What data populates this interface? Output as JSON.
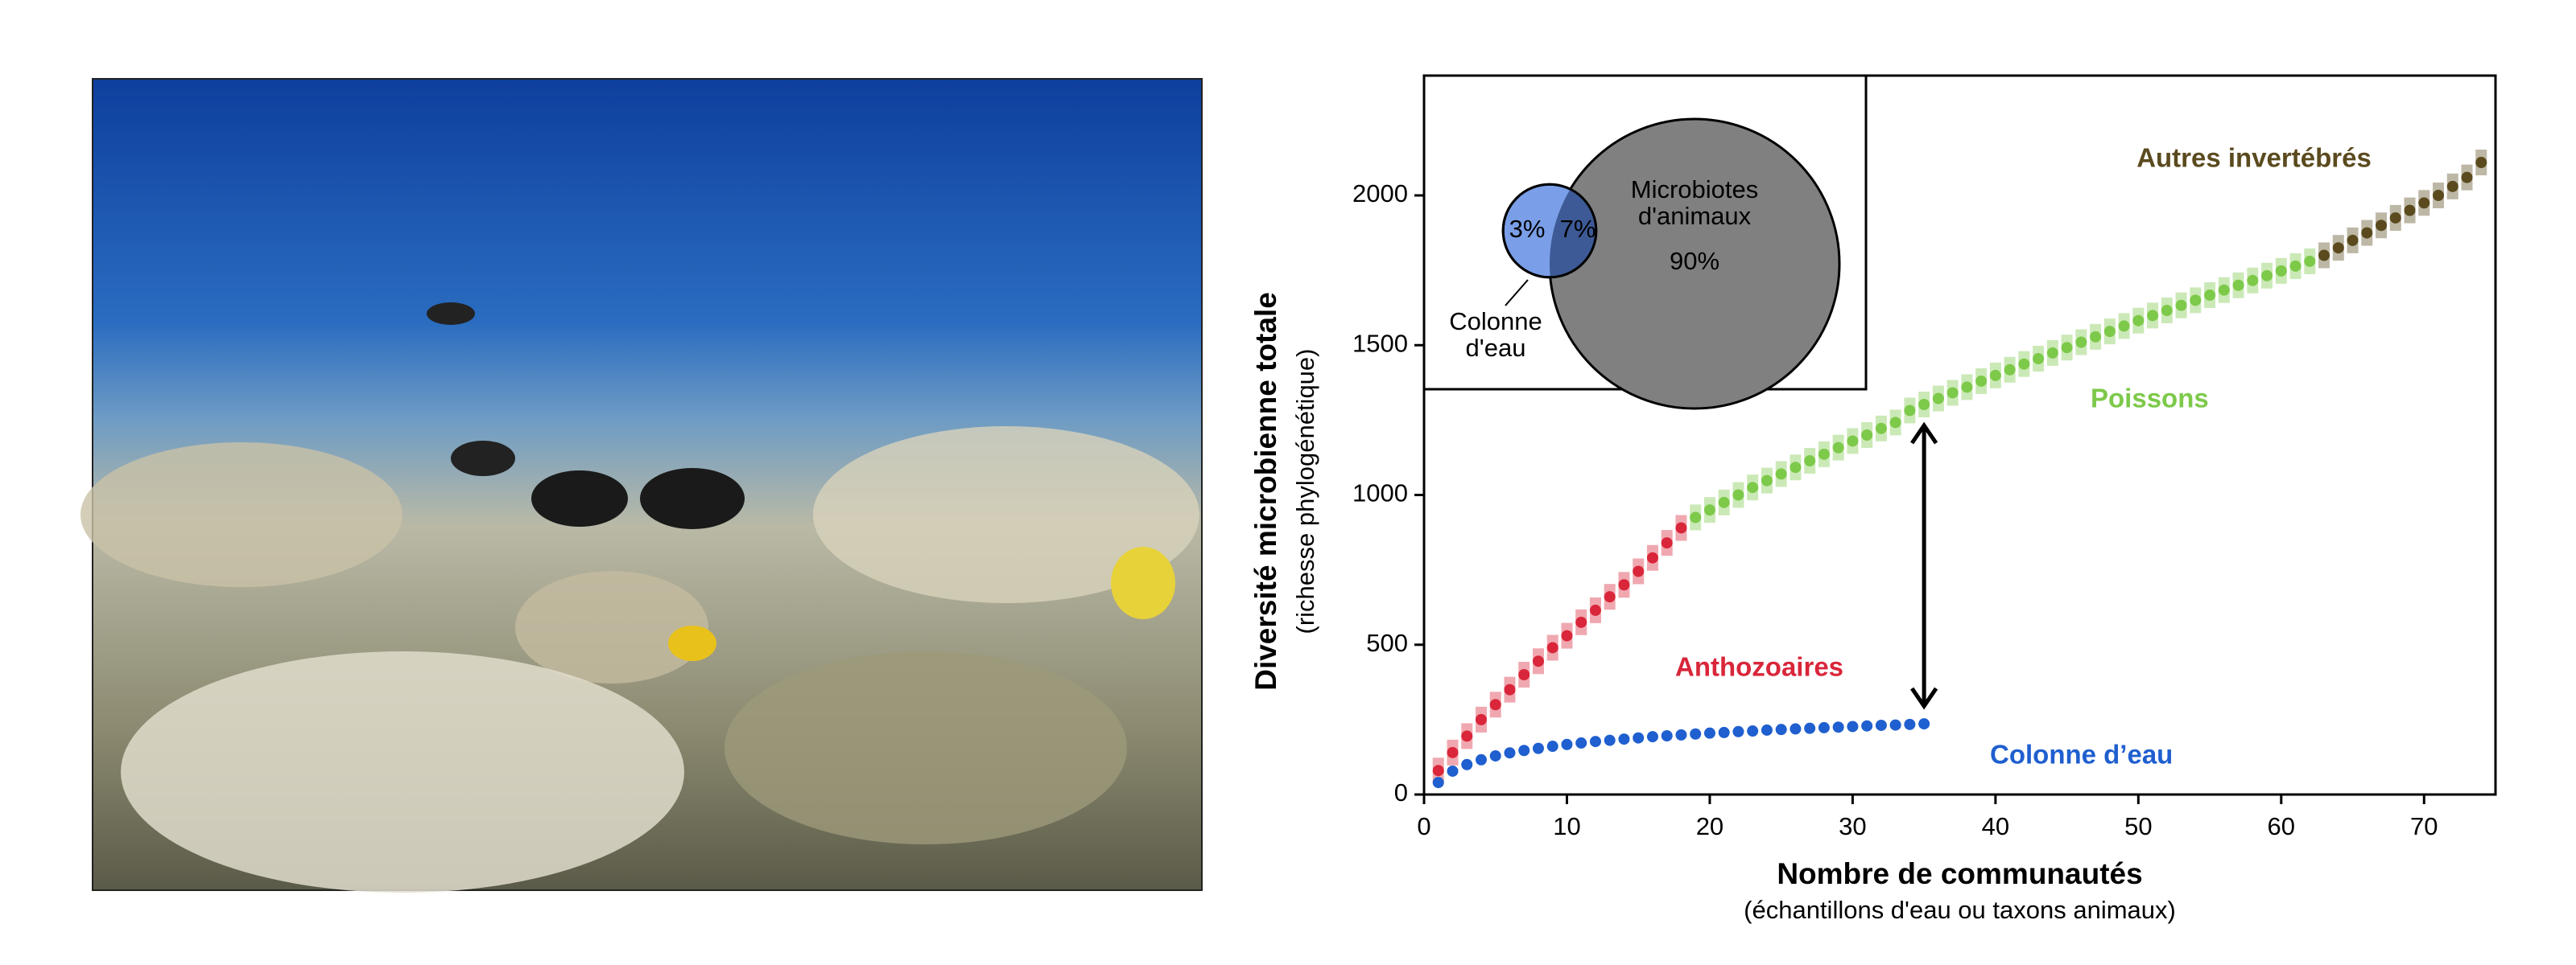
{
  "chart_data": {
    "type": "scatter",
    "xlabel": "Nombre de communautés",
    "xlabel_sub": "(échantillons d'eau ou taxons animaux)",
    "ylabel": "Diversité microbienne totale",
    "ylabel_sub": "(richesse phylogénétique)",
    "xlim": [
      0,
      75
    ],
    "xticks": [
      0,
      10,
      20,
      30,
      40,
      50,
      60,
      70
    ],
    "ylim": [
      0,
      2400
    ],
    "yticks": [
      0,
      500,
      1000,
      1500,
      2000
    ],
    "series": [
      {
        "name": "Anthozoaires",
        "color": "#d9263a",
        "x": [
          1,
          2,
          3,
          4,
          5,
          6,
          7,
          8,
          9,
          10,
          11,
          12,
          13,
          14,
          15,
          16,
          17,
          18
        ],
        "values": [
          80,
          140,
          195,
          250,
          300,
          350,
          400,
          445,
          490,
          530,
          575,
          615,
          660,
          700,
          745,
          790,
          840,
          890
        ]
      },
      {
        "name": "Poissons",
        "color": "#7dc94a",
        "x": [
          19,
          20,
          21,
          22,
          23,
          24,
          25,
          26,
          27,
          28,
          29,
          30,
          31,
          32,
          33,
          34,
          35,
          36,
          37,
          38,
          39,
          40,
          41,
          42,
          43,
          44,
          45,
          46,
          47,
          48,
          49,
          50,
          51,
          52,
          53,
          54,
          55,
          56,
          57,
          58,
          59,
          60,
          61,
          62
        ],
        "values": [
          925,
          950,
          975,
          1000,
          1025,
          1048,
          1070,
          1092,
          1114,
          1136,
          1158,
          1180,
          1200,
          1222,
          1242,
          1282,
          1302,
          1322,
          1341,
          1360,
          1380,
          1399,
          1418,
          1437,
          1455,
          1474,
          1492,
          1510,
          1528,
          1546,
          1564,
          1582,
          1599,
          1616,
          1633,
          1650,
          1667,
          1684,
          1700,
          1716,
          1732,
          1748,
          1764,
          1780
        ]
      },
      {
        "name": "Autres invertébrés",
        "color": "#5a4a1e",
        "x": [
          63,
          64,
          65,
          66,
          67,
          68,
          69,
          70,
          71,
          72,
          73,
          74
        ],
        "values": [
          1800,
          1825,
          1850,
          1875,
          1900,
          1925,
          1950,
          1975,
          2000,
          2030,
          2060,
          2110
        ]
      },
      {
        "name": "Colonne d’eau",
        "color": "#1f5fcf",
        "x": [
          1,
          2,
          3,
          4,
          5,
          6,
          7,
          8,
          9,
          10,
          11,
          12,
          13,
          14,
          15,
          16,
          17,
          18,
          19,
          20,
          21,
          22,
          23,
          24,
          25,
          26,
          27,
          28,
          29,
          30,
          31,
          32,
          33,
          34,
          35
        ],
        "values": [
          40,
          78,
          100,
          116,
          129,
          139,
          147,
          154,
          161,
          167,
          172,
          177,
          181,
          185,
          189,
          193,
          196,
          199,
          202,
          205,
          207,
          210,
          212,
          215,
          217,
          219,
          221,
          223,
          225,
          227,
          229,
          231,
          232,
          234,
          236
        ]
      }
    ],
    "venn": {
      "water_label": [
        "Colonne",
        "d'eau"
      ],
      "animal_label": [
        "Microbiotes",
        "d'animaux"
      ],
      "values": [
        3,
        7,
        90
      ],
      "value_labels": [
        "3%",
        "7%",
        "90%"
      ]
    }
  }
}
